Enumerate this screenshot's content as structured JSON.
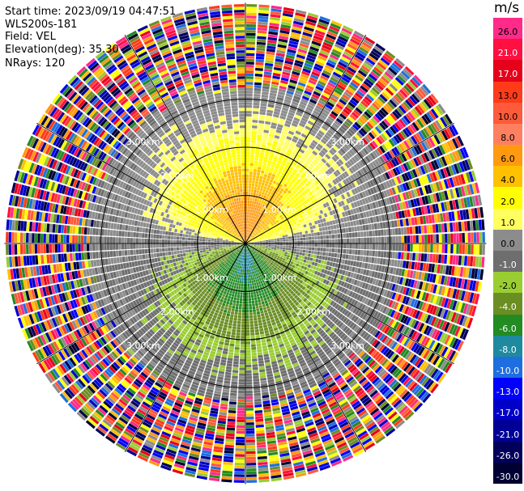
{
  "header": {
    "start_time": "Start time: 2023/09/19 04:47:51",
    "instrument": "WLS200s-181",
    "field": "Field: VEL",
    "elevation": "Elevation(deg): 35.30",
    "nrays": "NRays: 120"
  },
  "colorbar": {
    "title": "m/s",
    "levels": [
      {
        "label": "26.0",
        "color": "#ff2a8a",
        "text": "#000000"
      },
      {
        "label": "21.0",
        "color": "#ff1040",
        "text": "#ffffff"
      },
      {
        "label": "17.0",
        "color": "#e6001a",
        "text": "#ffffff"
      },
      {
        "label": "13.0",
        "color": "#ff3b1a",
        "text": "#000000"
      },
      {
        "label": "10.0",
        "color": "#ff5a3a",
        "text": "#000000"
      },
      {
        "label": "8.0",
        "color": "#ff8060",
        "text": "#000000"
      },
      {
        "label": "6.0",
        "color": "#ff9a10",
        "text": "#000000"
      },
      {
        "label": "4.0",
        "color": "#ffc000",
        "text": "#000000"
      },
      {
        "label": "2.0",
        "color": "#ffff00",
        "text": "#000000"
      },
      {
        "label": "1.0",
        "color": "#ffff60",
        "text": "#000000"
      },
      {
        "label": "0.0",
        "color": "#8c8c8c",
        "text": "#000000"
      },
      {
        "label": "-1.0",
        "color": "#6e6e6e",
        "text": "#ffffff"
      },
      {
        "label": "-2.0",
        "color": "#9acd32",
        "text": "#000000"
      },
      {
        "label": "-4.0",
        "color": "#6b8e23",
        "text": "#ffffff"
      },
      {
        "label": "-6.0",
        "color": "#228b22",
        "text": "#ffffff"
      },
      {
        "label": "-8.0",
        "color": "#1e8aa0",
        "text": "#ffffff"
      },
      {
        "label": "-10.0",
        "color": "#1e6ee0",
        "text": "#ffffff"
      },
      {
        "label": "-13.0",
        "color": "#0000ff",
        "text": "#ffffff"
      },
      {
        "label": "-17.0",
        "color": "#0000c8",
        "text": "#ffffff"
      },
      {
        "label": "-21.0",
        "color": "#000096",
        "text": "#ffffff"
      },
      {
        "label": "-26.0",
        "color": "#00005a",
        "text": "#ffffff"
      },
      {
        "label": "-30.0",
        "color": "#000032",
        "text": "#ffffff"
      }
    ]
  },
  "chart_data": {
    "type": "heatmap",
    "projection": "polar-ppi",
    "field": "VEL",
    "units": "m/s",
    "n_rays": 120,
    "range_rings_km": [
      1.0,
      2.0,
      3.0
    ],
    "ring_labels": [
      "1.00km",
      "2.00km",
      "3.00km"
    ],
    "spokes_deg": [
      0,
      30,
      60,
      90,
      120,
      150,
      180,
      210,
      240,
      270,
      300,
      330
    ],
    "max_range_km": 5.0,
    "valid_data_range_km": 3.3,
    "pattern": "positive velocities (away) in northern half peaking near 6-8 m/s, negative velocities (toward) in southern half down to about -6 m/s, noise beyond ~3.3 km"
  }
}
